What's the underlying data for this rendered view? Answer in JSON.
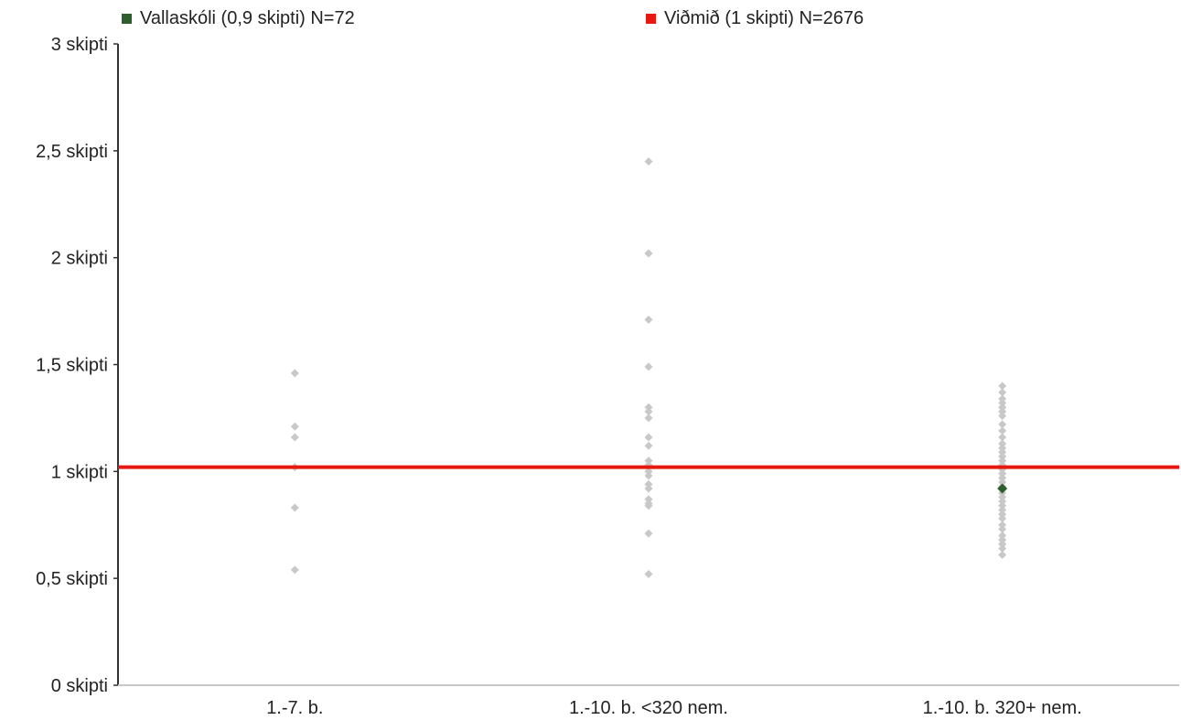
{
  "chart_data": {
    "type": "scatter",
    "categories": [
      "1.-7. b.",
      "1.-10. b. <320 nem.",
      "1.-10. b. 320+ nem."
    ],
    "y_ticks": [
      {
        "value": 0,
        "label": "0 skipti"
      },
      {
        "value": 0.5,
        "label": "0,5 skipti"
      },
      {
        "value": 1,
        "label": "1 skipti"
      },
      {
        "value": 1.5,
        "label": "1,5 skipti"
      },
      {
        "value": 2,
        "label": "2 skipti"
      },
      {
        "value": 2.5,
        "label": "2,5 skipti"
      },
      {
        "value": 3,
        "label": "3 skipti"
      }
    ],
    "ylim": [
      0,
      3
    ],
    "grid": false,
    "legend_position": "top",
    "reference_line": {
      "value": 1.02,
      "color": "#e8170f"
    },
    "series": [
      {
        "name": "Vallaskóli (0,9 skipti) N=72",
        "color": "#2e5e2e",
        "points": [
          {
            "category": 2,
            "y": 0.92
          }
        ]
      },
      {
        "name": "Viðmið (1 skipti) N=2676",
        "color": "#e8170f",
        "points": []
      },
      {
        "color": "#c8c8c8",
        "points": [
          {
            "category": 0,
            "y": 1.46
          },
          {
            "category": 0,
            "y": 1.21
          },
          {
            "category": 0,
            "y": 1.16
          },
          {
            "category": 0,
            "y": 1.02
          },
          {
            "category": 0,
            "y": 0.83
          },
          {
            "category": 0,
            "y": 0.54
          },
          {
            "category": 1,
            "y": 2.45
          },
          {
            "category": 1,
            "y": 2.02
          },
          {
            "category": 1,
            "y": 1.71
          },
          {
            "category": 1,
            "y": 1.49
          },
          {
            "category": 1,
            "y": 1.3
          },
          {
            "category": 1,
            "y": 1.28
          },
          {
            "category": 1,
            "y": 1.25
          },
          {
            "category": 1,
            "y": 1.16
          },
          {
            "category": 1,
            "y": 1.12
          },
          {
            "category": 1,
            "y": 1.05
          },
          {
            "category": 1,
            "y": 1.03
          },
          {
            "category": 1,
            "y": 1.0
          },
          {
            "category": 1,
            "y": 0.98
          },
          {
            "category": 1,
            "y": 0.94
          },
          {
            "category": 1,
            "y": 0.92
          },
          {
            "category": 1,
            "y": 0.87
          },
          {
            "category": 1,
            "y": 0.85
          },
          {
            "category": 1,
            "y": 0.84
          },
          {
            "category": 1,
            "y": 0.71
          },
          {
            "category": 1,
            "y": 0.52
          },
          {
            "category": 2,
            "y": 1.4
          },
          {
            "category": 2,
            "y": 1.37
          },
          {
            "category": 2,
            "y": 1.34
          },
          {
            "category": 2,
            "y": 1.32
          },
          {
            "category": 2,
            "y": 1.3
          },
          {
            "category": 2,
            "y": 1.28
          },
          {
            "category": 2,
            "y": 1.26
          },
          {
            "category": 2,
            "y": 1.22
          },
          {
            "category": 2,
            "y": 1.19
          },
          {
            "category": 2,
            "y": 1.16
          },
          {
            "category": 2,
            "y": 1.13
          },
          {
            "category": 2,
            "y": 1.11
          },
          {
            "category": 2,
            "y": 1.09
          },
          {
            "category": 2,
            "y": 1.07
          },
          {
            "category": 2,
            "y": 1.05
          },
          {
            "category": 2,
            "y": 1.03
          },
          {
            "category": 2,
            "y": 1.01
          },
          {
            "category": 2,
            "y": 0.99
          },
          {
            "category": 2,
            "y": 0.97
          },
          {
            "category": 2,
            "y": 0.95
          },
          {
            "category": 2,
            "y": 0.93
          },
          {
            "category": 2,
            "y": 0.9
          },
          {
            "category": 2,
            "y": 0.88
          },
          {
            "category": 2,
            "y": 0.86
          },
          {
            "category": 2,
            "y": 0.84
          },
          {
            "category": 2,
            "y": 0.82
          },
          {
            "category": 2,
            "y": 0.8
          },
          {
            "category": 2,
            "y": 0.78
          },
          {
            "category": 2,
            "y": 0.75
          },
          {
            "category": 2,
            "y": 0.73
          },
          {
            "category": 2,
            "y": 0.7
          },
          {
            "category": 2,
            "y": 0.68
          },
          {
            "category": 2,
            "y": 0.66
          },
          {
            "category": 2,
            "y": 0.64
          },
          {
            "category": 2,
            "y": 0.61
          }
        ]
      }
    ]
  }
}
